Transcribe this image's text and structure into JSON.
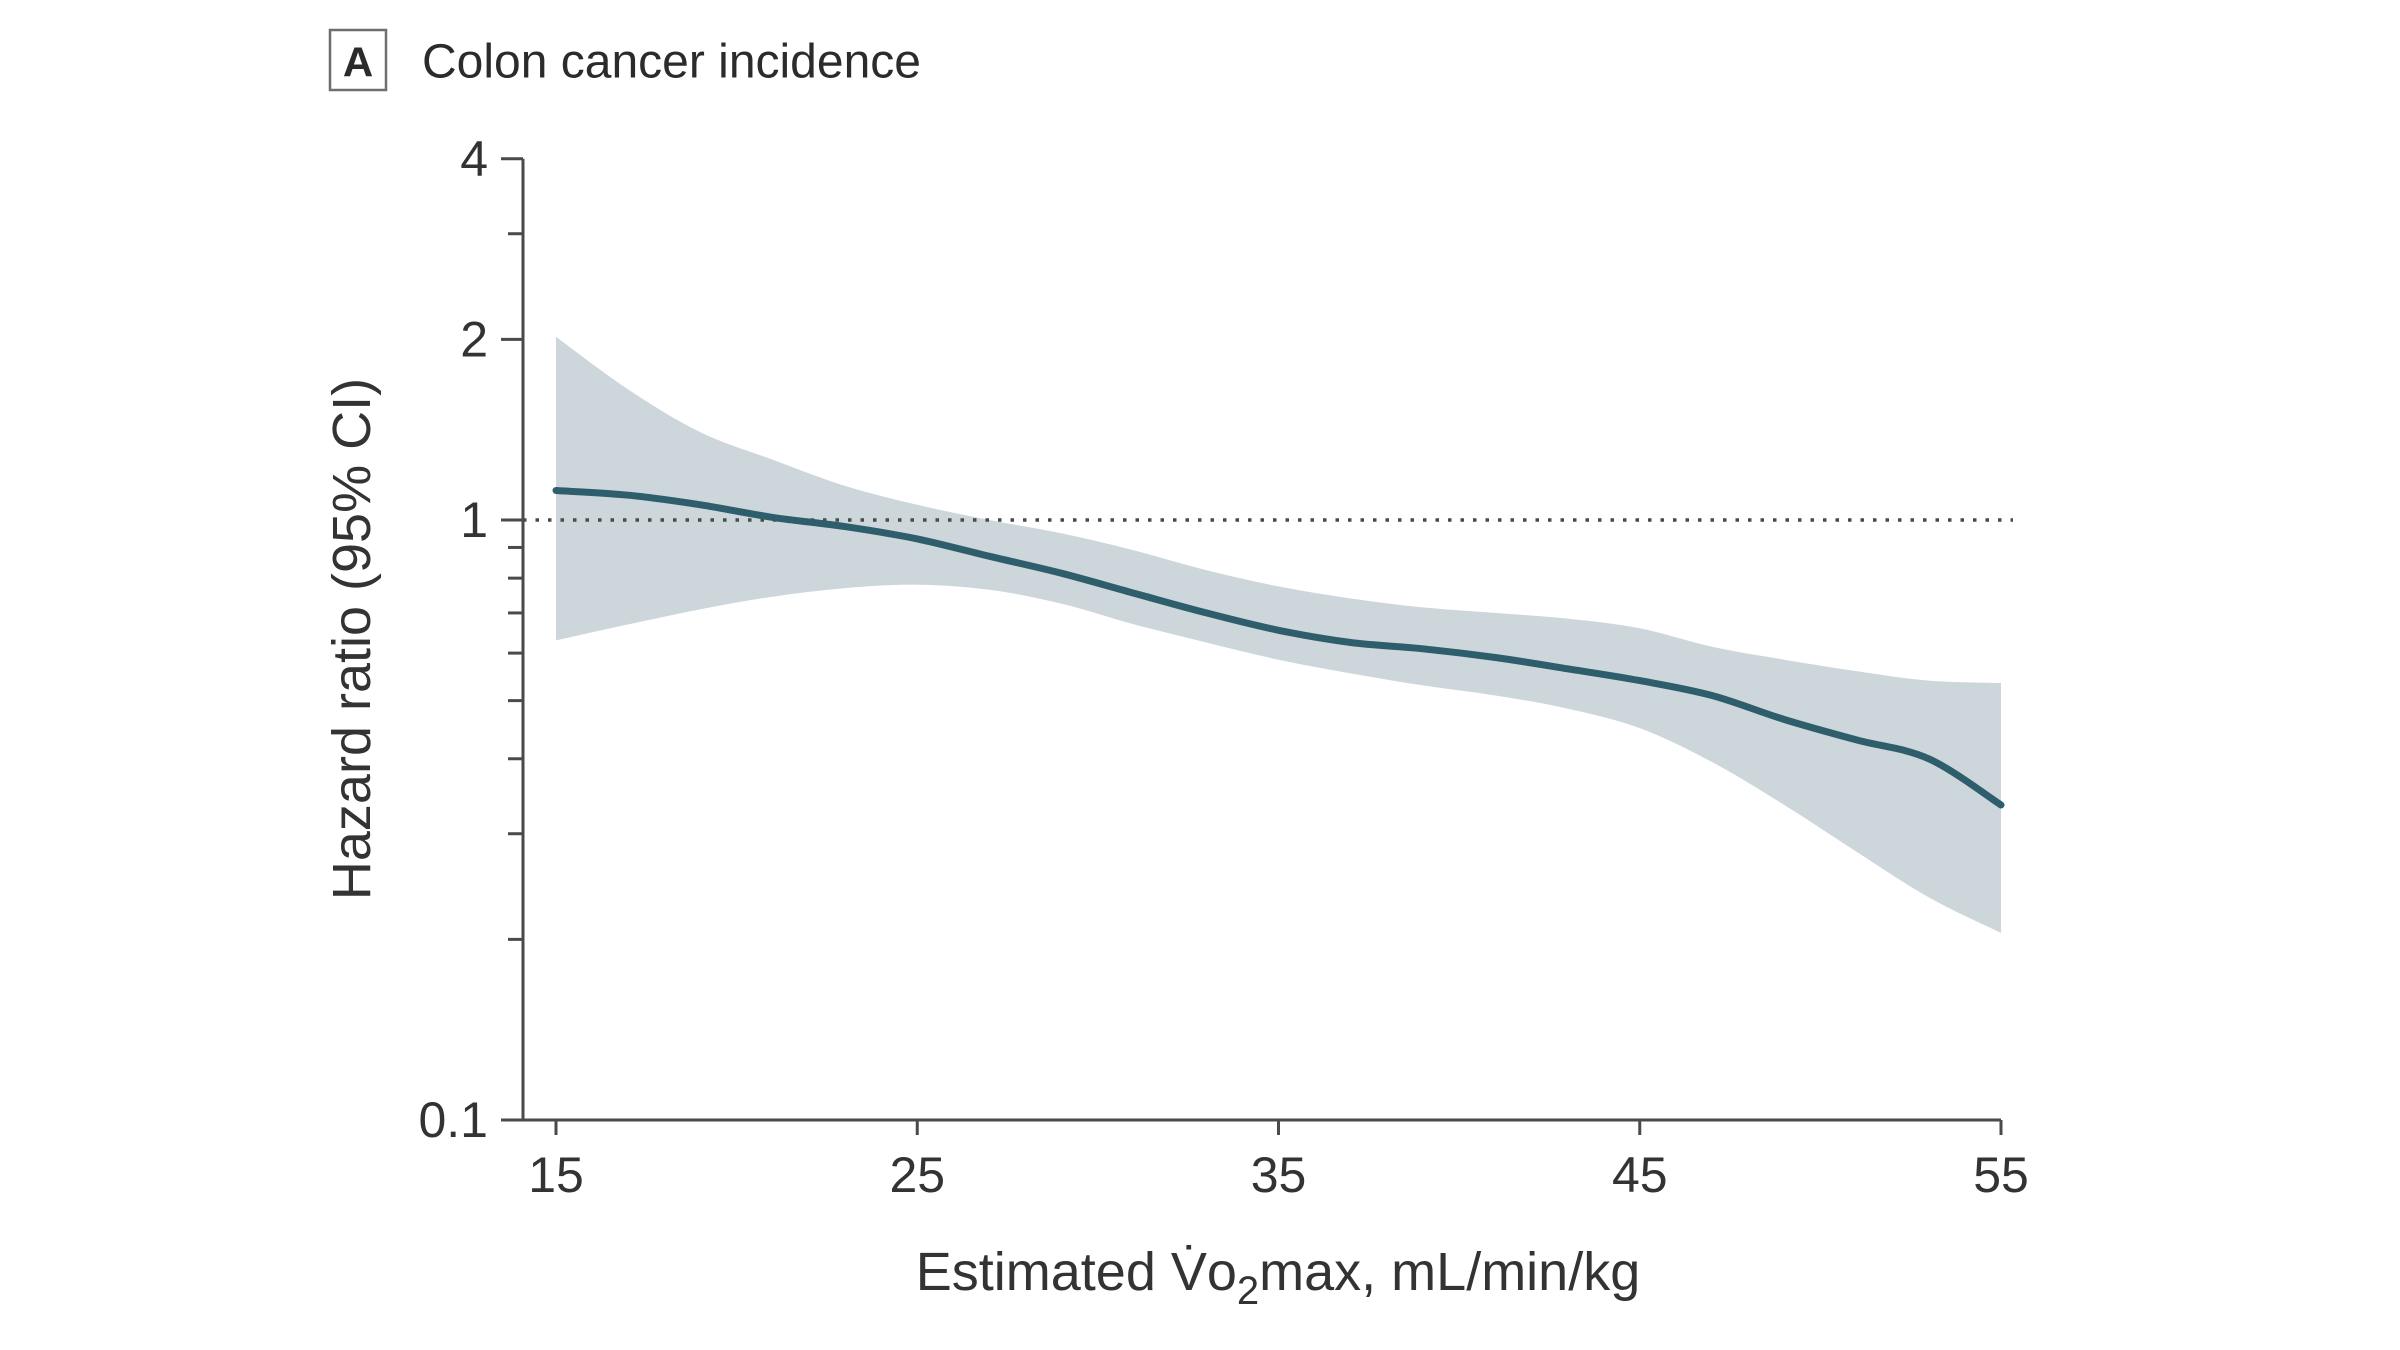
{
  "figure": {
    "panel_label": "A",
    "title": "Colon cancer incidence"
  },
  "chart_data": {
    "type": "line",
    "panel_label": "A",
    "title": "Colon cancer incidence",
    "ylabel": "Hazard ratio (95% CI)",
    "xlabel_plain": "Estimated VO2max, mL/min/kg",
    "xlabel_parts": {
      "pre": "Estimated V̇o",
      "sub": "2",
      "post": "max, mL/min/kg"
    },
    "x_axis": {
      "min": 15,
      "max": 55,
      "tick_values": [
        15,
        25,
        35,
        45,
        55
      ],
      "tick_labels": [
        "15",
        "25",
        "35",
        "45",
        "55"
      ]
    },
    "y_axis": {
      "scale": "log",
      "min": 0.1,
      "max": 4,
      "major_ticks": [
        {
          "value": 4,
          "label": "4"
        },
        {
          "value": 2,
          "label": "2"
        },
        {
          "value": 1,
          "label": "1"
        },
        {
          "value": 0.1,
          "label": "0.1"
        }
      ],
      "minor_tick_values": [
        3,
        0.9,
        0.8,
        0.7,
        0.6,
        0.5,
        0.4,
        0.3,
        0.2
      ]
    },
    "reference_line_y": 1,
    "grid": "off",
    "legend": "none",
    "series": [
      {
        "name": "Hazard ratio",
        "x": [
          15,
          17,
          19,
          21,
          23,
          25,
          27,
          29,
          31,
          33,
          35,
          37,
          39,
          41,
          43,
          45,
          47,
          49,
          51,
          53,
          55
        ],
        "y": [
          1.12,
          1.1,
          1.06,
          1.01,
          0.975,
          0.93,
          0.87,
          0.815,
          0.755,
          0.7,
          0.655,
          0.625,
          0.61,
          0.59,
          0.565,
          0.54,
          0.51,
          0.465,
          0.43,
          0.4,
          0.335
        ]
      },
      {
        "name": "95% CI upper",
        "x": [
          15,
          17,
          19,
          21,
          23,
          25,
          27,
          29,
          31,
          33,
          35,
          37,
          39,
          41,
          43,
          45,
          47,
          49,
          51,
          53,
          55
        ],
        "y": [
          2.02,
          1.65,
          1.4,
          1.26,
          1.14,
          1.06,
          1.0,
          0.95,
          0.89,
          0.825,
          0.775,
          0.74,
          0.715,
          0.7,
          0.685,
          0.66,
          0.615,
          0.585,
          0.56,
          0.54,
          0.535
        ]
      },
      {
        "name": "95% CI lower",
        "x": [
          15,
          17,
          19,
          21,
          23,
          25,
          27,
          29,
          31,
          33,
          35,
          37,
          39,
          41,
          43,
          45,
          47,
          49,
          51,
          53,
          55
        ],
        "y": [
          0.63,
          0.67,
          0.71,
          0.745,
          0.77,
          0.78,
          0.765,
          0.725,
          0.67,
          0.625,
          0.585,
          0.555,
          0.53,
          0.51,
          0.485,
          0.45,
          0.395,
          0.335,
          0.28,
          0.235,
          0.205
        ]
      }
    ],
    "colors": {
      "curve": "#2e5e6c",
      "band": "#cdd7db",
      "axis": "#4a4a4a",
      "ref_line": "#4a4a4a",
      "text": "#333333",
      "background": "#ffffff"
    }
  }
}
